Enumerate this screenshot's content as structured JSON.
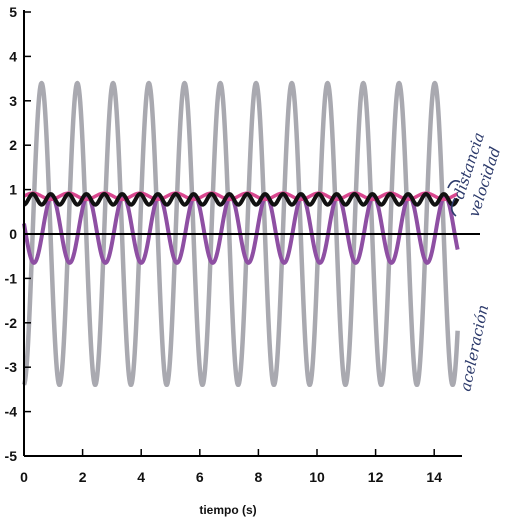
{
  "chart_data": {
    "type": "line",
    "xlabel": "tiempo (s)",
    "ylabel": "",
    "xlim": [
      0,
      15
    ],
    "ylim": [
      -5,
      5
    ],
    "x_ticks": [
      0,
      2,
      4,
      6,
      8,
      10,
      12,
      14
    ],
    "y_ticks": [
      5,
      4,
      3,
      2,
      1,
      0,
      -1,
      -2,
      -3,
      -4,
      -5
    ],
    "zero_line": true,
    "grid": false,
    "series": [
      {
        "name": "aceleración",
        "color": "#a9a9b0",
        "shape": "sine",
        "period": 1.22,
        "mid": 0,
        "amplitude": 3.4,
        "phase_peak_x": 0.6
      },
      {
        "name": "velocidad",
        "color": "#8e4fa3",
        "shape": "sine",
        "period": 1.22,
        "mid": 0.1,
        "amplitude": 0.75,
        "phase_peak_x": 0.95
      },
      {
        "name": "distancia",
        "color": "#d9478f",
        "shape": "sine",
        "period": 1.22,
        "mid": 0.85,
        "amplitude": 0.07,
        "phase_peak_x": 0.3
      },
      {
        "name": "",
        "color": "#111111",
        "shape": "sine",
        "period": 0.61,
        "mid": 0.78,
        "amplitude": 0.12,
        "phase_peak_x": 0.3
      }
    ],
    "annotations": [
      {
        "text": "distancia",
        "series": "distancia"
      },
      {
        "text": "velocidad",
        "series": "velocidad"
      },
      {
        "text": "aceleración",
        "series": "aceleración"
      }
    ]
  }
}
